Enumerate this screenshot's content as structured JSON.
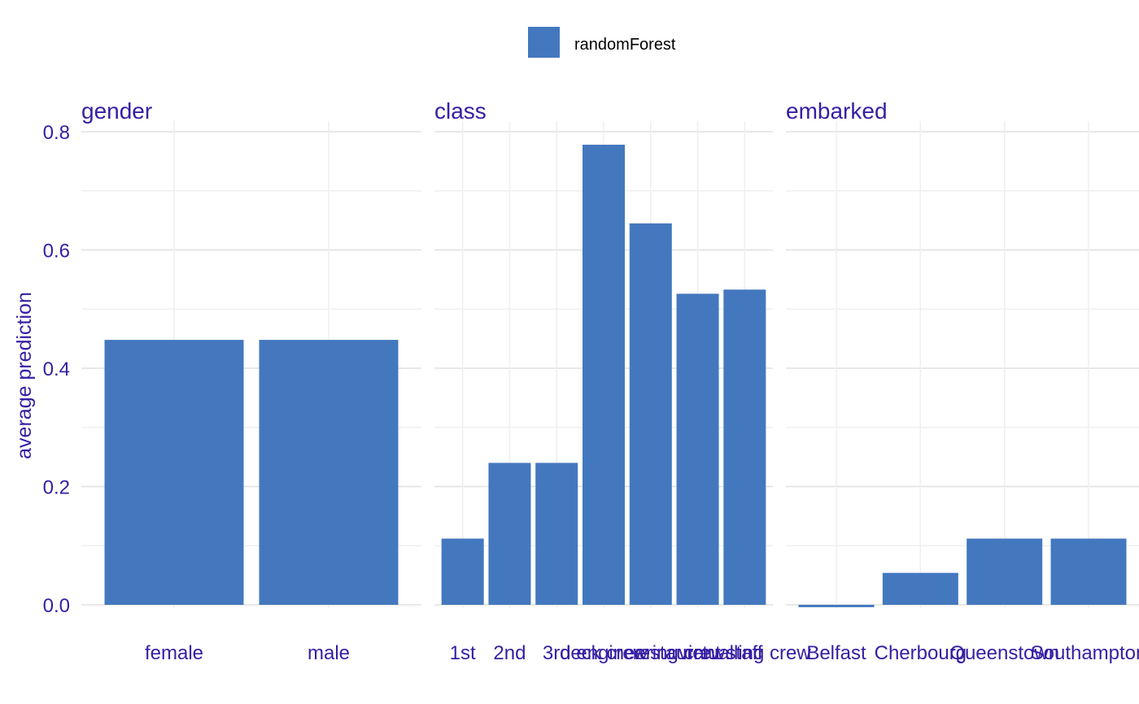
{
  "colors": {
    "bar": "#4378BF",
    "text": "#371EA3",
    "grid_major": "#E0E0E0",
    "grid_minor": "#EFEFEF",
    "legend_text": "#000000"
  },
  "legend": {
    "label": "randomForest",
    "position": "top-center"
  },
  "chart_data": {
    "type": "bar",
    "layout": "facets",
    "ylabel": "average prediction",
    "ylim": [
      -0.005,
      0.82
    ],
    "yticks": [
      "0.0",
      "0.2",
      "0.4",
      "0.6",
      "0.8"
    ],
    "grid": true,
    "facets": [
      {
        "title": "gender",
        "categories": [
          "female",
          "male"
        ],
        "values": [
          0.448,
          0.448
        ]
      },
      {
        "title": "class",
        "categories": [
          "1st",
          "2nd",
          "3rd",
          "deck crew",
          "engineering crew",
          "restaurant staff",
          "victualling crew"
        ],
        "values": [
          0.112,
          0.24,
          0.24,
          0.778,
          0.645,
          0.526,
          0.533
        ]
      },
      {
        "title": "embarked",
        "categories": [
          "Belfast",
          "Cherbourg",
          "Queenstown",
          "Southampton"
        ],
        "values": [
          -0.004,
          0.054,
          0.112,
          0.112
        ]
      }
    ]
  }
}
